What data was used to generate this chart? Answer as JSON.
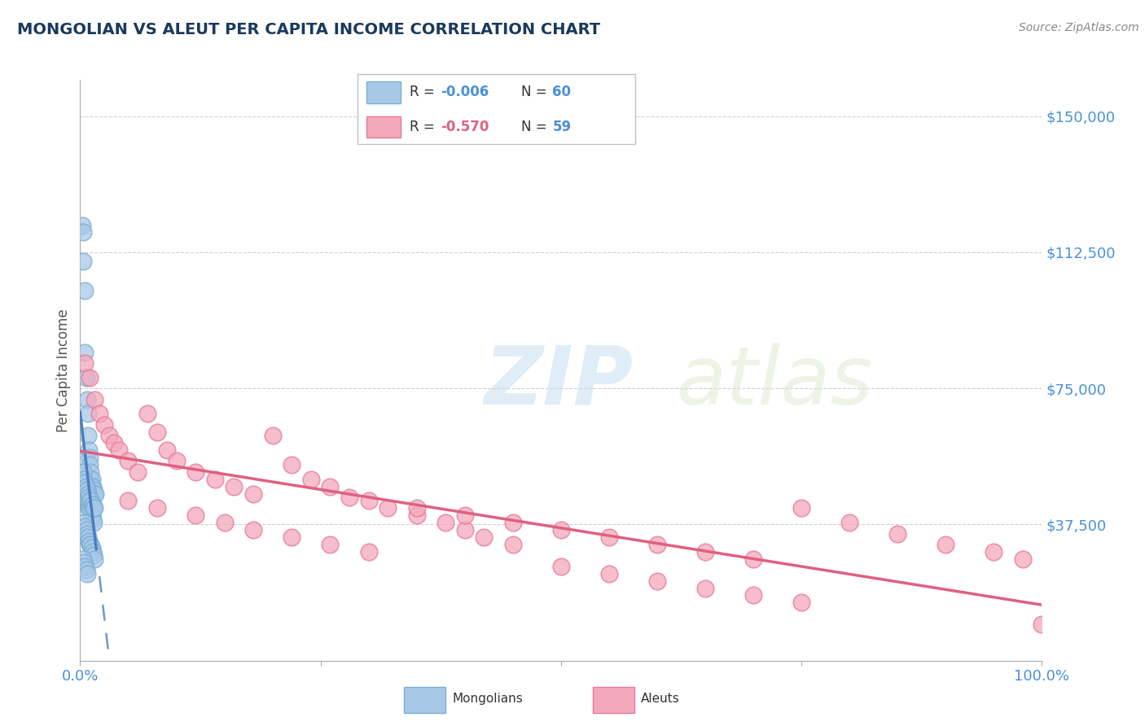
{
  "title": "MONGOLIAN VS ALEUT PER CAPITA INCOME CORRELATION CHART",
  "source_text": "Source: ZipAtlas.com",
  "ylabel": "Per Capita Income",
  "xlim": [
    0,
    1.0
  ],
  "ylim": [
    0,
    160000
  ],
  "yticks": [
    0,
    37500,
    75000,
    112500,
    150000
  ],
  "ytick_labels": [
    "",
    "$37,500",
    "$75,000",
    "$112,500",
    "$150,000"
  ],
  "background_color": "#ffffff",
  "grid_color": "#cccccc",
  "mongolian_color": "#a8c8e8",
  "aleut_color": "#f4a8bc",
  "mongolian_edge_color": "#7aafd4",
  "aleut_edge_color": "#e87898",
  "mongolian_line_color": "#4a7fc0",
  "aleut_line_color": "#e06080",
  "R_mongolian": -0.006,
  "N_mongolian": 60,
  "R_aleut": -0.57,
  "N_aleut": 59,
  "title_color": "#1a3a5c",
  "tick_label_color": "#4a90d9",
  "watermark_zip": "ZIP",
  "watermark_atlas": "atlas",
  "mongolian_x": [
    0.002,
    0.003,
    0.003,
    0.005,
    0.005,
    0.006,
    0.007,
    0.008,
    0.008,
    0.009,
    0.01,
    0.01,
    0.011,
    0.011,
    0.012,
    0.012,
    0.013,
    0.014,
    0.015,
    0.016,
    0.005,
    0.006,
    0.007,
    0.008,
    0.009,
    0.01,
    0.011,
    0.012,
    0.013,
    0.014,
    0.003,
    0.004,
    0.005,
    0.006,
    0.007,
    0.008,
    0.009,
    0.01,
    0.011,
    0.012,
    0.013,
    0.014,
    0.015,
    0.004,
    0.005,
    0.006,
    0.007,
    0.008,
    0.009,
    0.01,
    0.011,
    0.012,
    0.013,
    0.014,
    0.015,
    0.003,
    0.004,
    0.005,
    0.006,
    0.007
  ],
  "mongolian_y": [
    120000,
    118000,
    110000,
    102000,
    85000,
    78000,
    72000,
    68000,
    62000,
    58000,
    56000,
    54000,
    52000,
    50000,
    50000,
    48000,
    48000,
    47000,
    46000,
    46000,
    45000,
    44000,
    44000,
    43000,
    42000,
    42000,
    41000,
    40000,
    39000,
    38000,
    52000,
    50000,
    49000,
    48000,
    47000,
    46000,
    45000,
    44000,
    44000,
    43000,
    43000,
    42000,
    42000,
    38000,
    37000,
    36000,
    35000,
    34000,
    33000,
    32000,
    32000,
    31000,
    30000,
    29000,
    28000,
    28000,
    27000,
    26000,
    25000,
    24000
  ],
  "aleut_x": [
    0.005,
    0.01,
    0.015,
    0.02,
    0.025,
    0.03,
    0.035,
    0.04,
    0.05,
    0.06,
    0.07,
    0.08,
    0.09,
    0.1,
    0.12,
    0.14,
    0.16,
    0.18,
    0.2,
    0.22,
    0.24,
    0.26,
    0.28,
    0.3,
    0.32,
    0.35,
    0.38,
    0.4,
    0.42,
    0.45,
    0.05,
    0.08,
    0.12,
    0.15,
    0.18,
    0.22,
    0.26,
    0.3,
    0.35,
    0.4,
    0.45,
    0.5,
    0.55,
    0.6,
    0.65,
    0.7,
    0.75,
    0.8,
    0.85,
    0.9,
    0.95,
    0.98,
    0.5,
    0.55,
    0.6,
    0.65,
    0.7,
    0.75,
    1.0
  ],
  "aleut_y": [
    82000,
    78000,
    72000,
    68000,
    65000,
    62000,
    60000,
    58000,
    55000,
    52000,
    68000,
    63000,
    58000,
    55000,
    52000,
    50000,
    48000,
    46000,
    62000,
    54000,
    50000,
    48000,
    45000,
    44000,
    42000,
    40000,
    38000,
    36000,
    34000,
    32000,
    44000,
    42000,
    40000,
    38000,
    36000,
    34000,
    32000,
    30000,
    42000,
    40000,
    38000,
    36000,
    34000,
    32000,
    30000,
    28000,
    42000,
    38000,
    35000,
    32000,
    30000,
    28000,
    26000,
    24000,
    22000,
    20000,
    18000,
    16000,
    10000
  ]
}
